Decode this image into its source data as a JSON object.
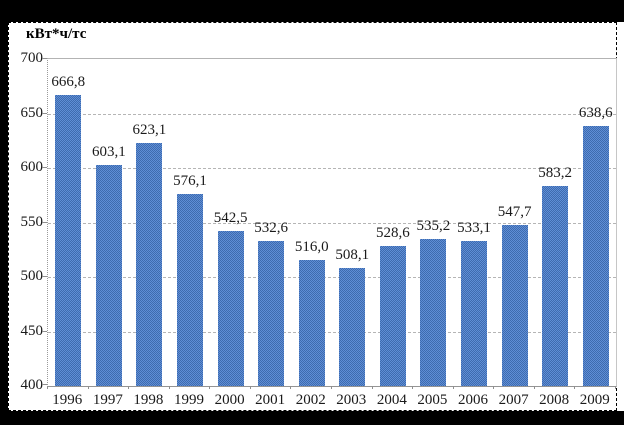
{
  "chart_data": {
    "type": "bar",
    "title": "",
    "unit_label": "кВт*ч/тс",
    "categories": [
      "1996",
      "1997",
      "1998",
      "1999",
      "2000",
      "2001",
      "2002",
      "2003",
      "2004",
      "2005",
      "2006",
      "2007",
      "2008",
      "2009"
    ],
    "values": [
      666.8,
      603.1,
      623.1,
      576.1,
      542.5,
      532.6,
      516.0,
      508.1,
      528.6,
      535.2,
      533.1,
      547.7,
      583.2,
      638.6
    ],
    "value_labels": [
      "666,8",
      "603,1",
      "623,1",
      "576,1",
      "542,5",
      "532,6",
      "516,0",
      "508,1",
      "528,6",
      "535,2",
      "533,1",
      "547,7",
      "583,2",
      "638,6"
    ],
    "xlabel": "",
    "ylabel": "кВт*ч/тс",
    "ylim": [
      400,
      700
    ],
    "ytick_step": 50,
    "yticks": [
      "700",
      "650",
      "600",
      "550",
      "500",
      "450",
      "400"
    ],
    "grid": "horizontal-dashed",
    "legend": "none",
    "colors": {
      "bar_light": "#5f8ed6",
      "bar_dark": "#3e6bae",
      "gridline": "#b5b5b5",
      "axis": "#8f8f8f",
      "text": "#1a1a1a",
      "frame_background": "#ffffff",
      "page_background": "#000000"
    }
  }
}
